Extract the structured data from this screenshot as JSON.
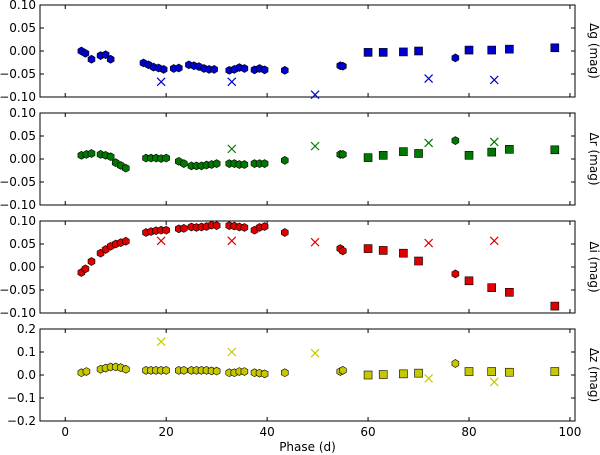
{
  "chart_data": [
    {
      "type": "scatter",
      "ylabel": "Δg (mag)",
      "color": "#0000cc",
      "ylim": [
        -0.1,
        0.1
      ],
      "yticks": [
        -0.1,
        -0.05,
        0.0,
        0.05,
        0.1
      ],
      "ytick_labels": [
        "−0.10",
        "−0.05",
        "0.00",
        "0.05",
        "0.10"
      ],
      "series": [
        {
          "marker": "hexagon",
          "x": [
            3.2,
            4.0,
            5.2,
            7.0,
            8.0,
            9.0,
            15.5,
            16.5,
            17.5,
            18.5,
            19.5,
            21.5,
            22.5,
            24.5,
            25.5,
            26.5,
            27.5,
            28.5,
            29.5,
            32.5,
            33.5,
            34.5,
            35.5,
            37.5,
            38.5,
            39.5,
            43.5,
            54.5,
            55.0,
            77.3
          ],
          "y": [
            0.0,
            -0.005,
            -0.018,
            -0.01,
            -0.008,
            -0.018,
            -0.026,
            -0.03,
            -0.035,
            -0.037,
            -0.04,
            -0.038,
            -0.037,
            -0.03,
            -0.032,
            -0.034,
            -0.038,
            -0.04,
            -0.04,
            -0.042,
            -0.04,
            -0.036,
            -0.038,
            -0.041,
            -0.038,
            -0.041,
            -0.042,
            -0.032,
            -0.033,
            -0.015
          ]
        },
        {
          "marker": "square",
          "x": [
            60.0,
            63.0,
            67.0,
            70.0,
            80.0,
            84.5,
            88.0,
            97.0
          ],
          "y": [
            -0.003,
            -0.003,
            -0.002,
            0.0,
            0.002,
            0.002,
            0.004,
            0.007
          ]
        },
        {
          "marker": "cross",
          "x": [
            19.0,
            33.0,
            49.5,
            72.0,
            85.0
          ],
          "y": [
            -0.067,
            -0.067,
            -0.095,
            -0.06,
            -0.063
          ]
        }
      ]
    },
    {
      "type": "scatter",
      "ylabel": "Δr (mag)",
      "color": "#007700",
      "ylim": [
        -0.1,
        0.1
      ],
      "yticks": [
        -0.1,
        -0.05,
        0.0,
        0.05,
        0.1
      ],
      "ytick_labels": [
        "−0.10",
        "−0.05",
        "0.00",
        "0.05",
        "0.10"
      ],
      "series": [
        {
          "marker": "hexagon",
          "x": [
            3.2,
            4.2,
            5.2,
            7.0,
            8.0,
            9.0,
            10.0,
            11.0,
            12.0,
            16.0,
            17.0,
            18.0,
            19.0,
            20.0,
            22.5,
            23.5,
            25.0,
            26.0,
            27.0,
            28.0,
            29.0,
            30.0,
            32.5,
            33.5,
            34.5,
            35.5,
            37.5,
            38.5,
            39.5,
            43.5,
            54.5,
            55.0,
            77.3
          ],
          "y": [
            0.008,
            0.01,
            0.012,
            0.01,
            0.008,
            0.005,
            -0.008,
            -0.014,
            -0.02,
            0.002,
            0.002,
            0.002,
            0.001,
            0.002,
            -0.005,
            -0.01,
            -0.015,
            -0.015,
            -0.015,
            -0.013,
            -0.012,
            -0.01,
            -0.01,
            -0.01,
            -0.012,
            -0.012,
            -0.01,
            -0.01,
            -0.01,
            -0.003,
            0.01,
            0.01,
            0.04
          ]
        },
        {
          "marker": "square",
          "x": [
            60.0,
            63.0,
            67.0,
            70.0,
            80.0,
            84.5,
            88.0,
            97.0
          ],
          "y": [
            0.003,
            0.008,
            0.016,
            0.012,
            0.008,
            0.015,
            0.021,
            0.02
          ]
        },
        {
          "marker": "cross",
          "x": [
            33.0,
            49.5,
            72.0,
            85.0
          ],
          "y": [
            0.022,
            0.028,
            0.035,
            0.037
          ]
        }
      ]
    },
    {
      "type": "scatter",
      "ylabel": "Δi (mag)",
      "color": "#dd0000",
      "ylim": [
        -0.1,
        0.1
      ],
      "yticks": [
        -0.1,
        -0.05,
        0.0,
        0.05,
        0.1
      ],
      "ytick_labels": [
        "−0.10",
        "−0.05",
        "0.00",
        "0.05",
        "0.10"
      ],
      "series": [
        {
          "marker": "hexagon",
          "x": [
            3.2,
            4.0,
            5.2,
            7.0,
            8.0,
            9.0,
            10.0,
            11.0,
            12.0,
            16.0,
            17.0,
            18.0,
            19.0,
            20.0,
            22.5,
            23.5,
            25.0,
            26.0,
            27.0,
            28.0,
            29.0,
            30.0,
            32.5,
            33.5,
            34.5,
            35.5,
            37.5,
            38.5,
            39.5,
            43.5,
            54.5,
            55.0,
            77.3
          ],
          "y": [
            -0.012,
            -0.004,
            0.012,
            0.03,
            0.038,
            0.045,
            0.05,
            0.053,
            0.056,
            0.075,
            0.077,
            0.079,
            0.08,
            0.08,
            0.083,
            0.084,
            0.087,
            0.086,
            0.087,
            0.088,
            0.091,
            0.09,
            0.09,
            0.089,
            0.087,
            0.086,
            0.08,
            0.086,
            0.088,
            0.075,
            0.04,
            0.035,
            -0.015
          ]
        },
        {
          "marker": "square",
          "x": [
            60.0,
            63.0,
            67.0,
            70.0,
            80.0,
            84.5,
            88.0,
            97.0
          ],
          "y": [
            0.04,
            0.036,
            0.03,
            0.013,
            -0.03,
            -0.045,
            -0.055,
            -0.085
          ]
        },
        {
          "marker": "cross",
          "x": [
            19.0,
            33.0,
            49.5,
            72.0,
            85.0
          ],
          "y": [
            0.057,
            0.057,
            0.054,
            0.052,
            0.057
          ]
        }
      ]
    },
    {
      "type": "scatter",
      "ylabel": "Δz (mag)",
      "color": "#c8c800",
      "ylim": [
        -0.2,
        0.2
      ],
      "yticks": [
        -0.2,
        -0.1,
        0.0,
        0.1,
        0.2
      ],
      "ytick_labels": [
        "−0.2",
        "−0.1",
        "0.0",
        "0.1",
        "0.2"
      ],
      "series": [
        {
          "marker": "hexagon",
          "x": [
            3.2,
            4.2,
            7.0,
            8.0,
            9.0,
            10.0,
            11.0,
            12.0,
            16.0,
            17.0,
            18.0,
            19.0,
            20.0,
            22.5,
            23.5,
            25.0,
            26.0,
            27.0,
            28.0,
            29.0,
            30.0,
            32.5,
            33.5,
            34.5,
            35.5,
            37.5,
            38.5,
            39.5,
            43.5,
            54.5,
            55.0,
            77.3
          ],
          "y": [
            0.01,
            0.015,
            0.025,
            0.03,
            0.035,
            0.035,
            0.032,
            0.025,
            0.02,
            0.02,
            0.02,
            0.02,
            0.02,
            0.02,
            0.02,
            0.02,
            0.02,
            0.02,
            0.02,
            0.018,
            0.017,
            0.01,
            0.01,
            0.015,
            0.015,
            0.01,
            0.008,
            0.005,
            0.01,
            0.015,
            0.02,
            0.05
          ]
        },
        {
          "marker": "square",
          "x": [
            60.0,
            63.0,
            67.0,
            70.0,
            80.0,
            84.5,
            88.0,
            97.0
          ],
          "y": [
            0.0,
            0.002,
            0.005,
            0.008,
            0.015,
            0.015,
            0.012,
            0.015
          ]
        },
        {
          "marker": "cross",
          "x": [
            19.0,
            33.0,
            49.5,
            72.0,
            85.0
          ],
          "y": [
            0.145,
            0.1,
            0.095,
            -0.015,
            -0.03
          ]
        }
      ]
    }
  ],
  "x_axis": {
    "label": "Phase (d)",
    "xlim": [
      -5,
      101
    ],
    "ticks": [
      0,
      20,
      40,
      60,
      80,
      100
    ],
    "tick_labels": [
      "0",
      "20",
      "40",
      "60",
      "80",
      "100"
    ]
  }
}
